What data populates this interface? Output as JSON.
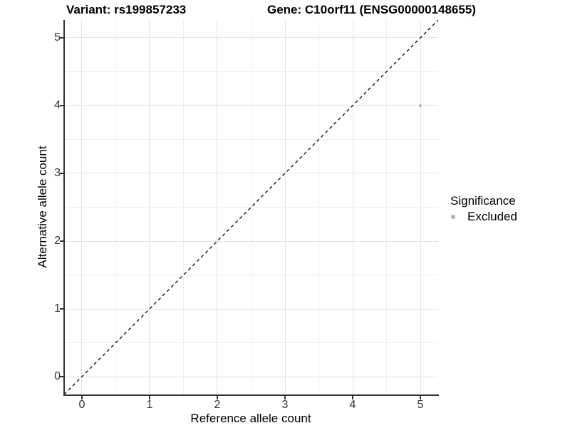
{
  "titles": {
    "variant": "Variant: rs199857233",
    "gene": "Gene: C10orf11 (ENSG00000148655)"
  },
  "legend": {
    "title": "Significance",
    "items": [
      {
        "label": "Excluded",
        "color": "#b3b3b3"
      }
    ]
  },
  "colors": {
    "point": "#b3b3b3",
    "grid_major": "#e3e3e3",
    "grid_minor": "#f0f0f0",
    "axis_line": "#333333",
    "reference_line": "#000000",
    "background": "#ffffff"
  },
  "chart_data": {
    "type": "scatter",
    "title": "Variant: rs199857233   Gene: C10orf11 (ENSG00000148655)",
    "xlabel": "Reference allele count",
    "ylabel": "Alternative allele count",
    "xlim": [
      -0.263,
      5.263
    ],
    "ylim": [
      -0.263,
      5.263
    ],
    "x_ticks": [
      0,
      1,
      2,
      3,
      4,
      5
    ],
    "y_ticks": [
      0,
      1,
      2,
      3,
      4,
      5
    ],
    "minor_grid_step": 0.5,
    "grid": "on",
    "legend_position": "right",
    "series": [
      {
        "name": "Excluded",
        "color": "#b3b3b3",
        "marker_size_px": 4,
        "points": [
          {
            "x": 5,
            "y": 4
          }
        ]
      }
    ],
    "reference_line": {
      "kind": "identity y=x",
      "style": "dashed",
      "color": "#000000",
      "x1": -0.263,
      "y1": -0.263,
      "x2": 5.263,
      "y2": 5.263
    }
  }
}
